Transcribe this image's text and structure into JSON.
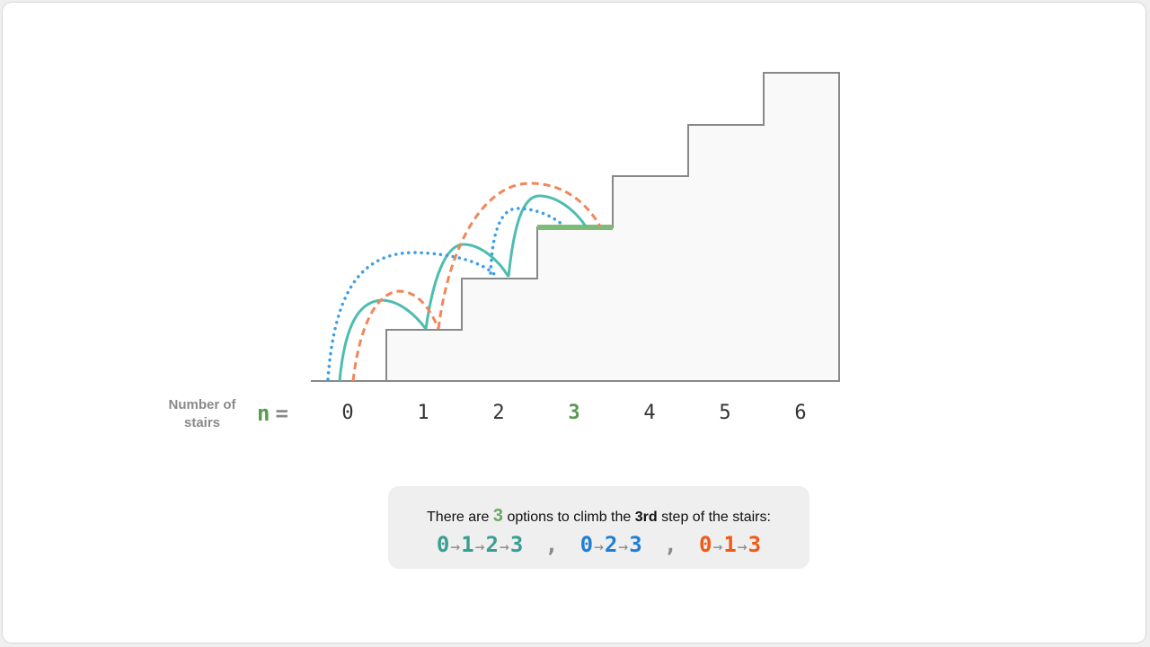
{
  "axis_label": "Number of stairs",
  "n_symbol": "n",
  "equals": "=",
  "stair_indices": [
    "0",
    "1",
    "2",
    "3",
    "4",
    "5",
    "6"
  ],
  "selected_index": 3,
  "sentence": {
    "prefix": "There are",
    "count": "3",
    "middle": "options to climb the",
    "ordinal": "3rd",
    "suffix": "step of the stairs:"
  },
  "paths": [
    {
      "steps": [
        "0",
        "1",
        "2",
        "3"
      ],
      "color": "#3a9e94",
      "style": "solid"
    },
    {
      "steps": [
        "0",
        "2",
        "3"
      ],
      "color": "#1f7fd4",
      "style": "dotted"
    },
    {
      "steps": [
        "0",
        "1",
        "3"
      ],
      "color": "#f05a14",
      "style": "dashed"
    }
  ],
  "separator": ",",
  "arrow": "→",
  "colors": {
    "highlight": "#7dbb78",
    "stair_line": "#888888",
    "stair_fill": "#f9f9f9",
    "path_solid": "#4dbdaf",
    "path_dotted": "#3b9ee8",
    "path_dashed": "#f0875a"
  }
}
